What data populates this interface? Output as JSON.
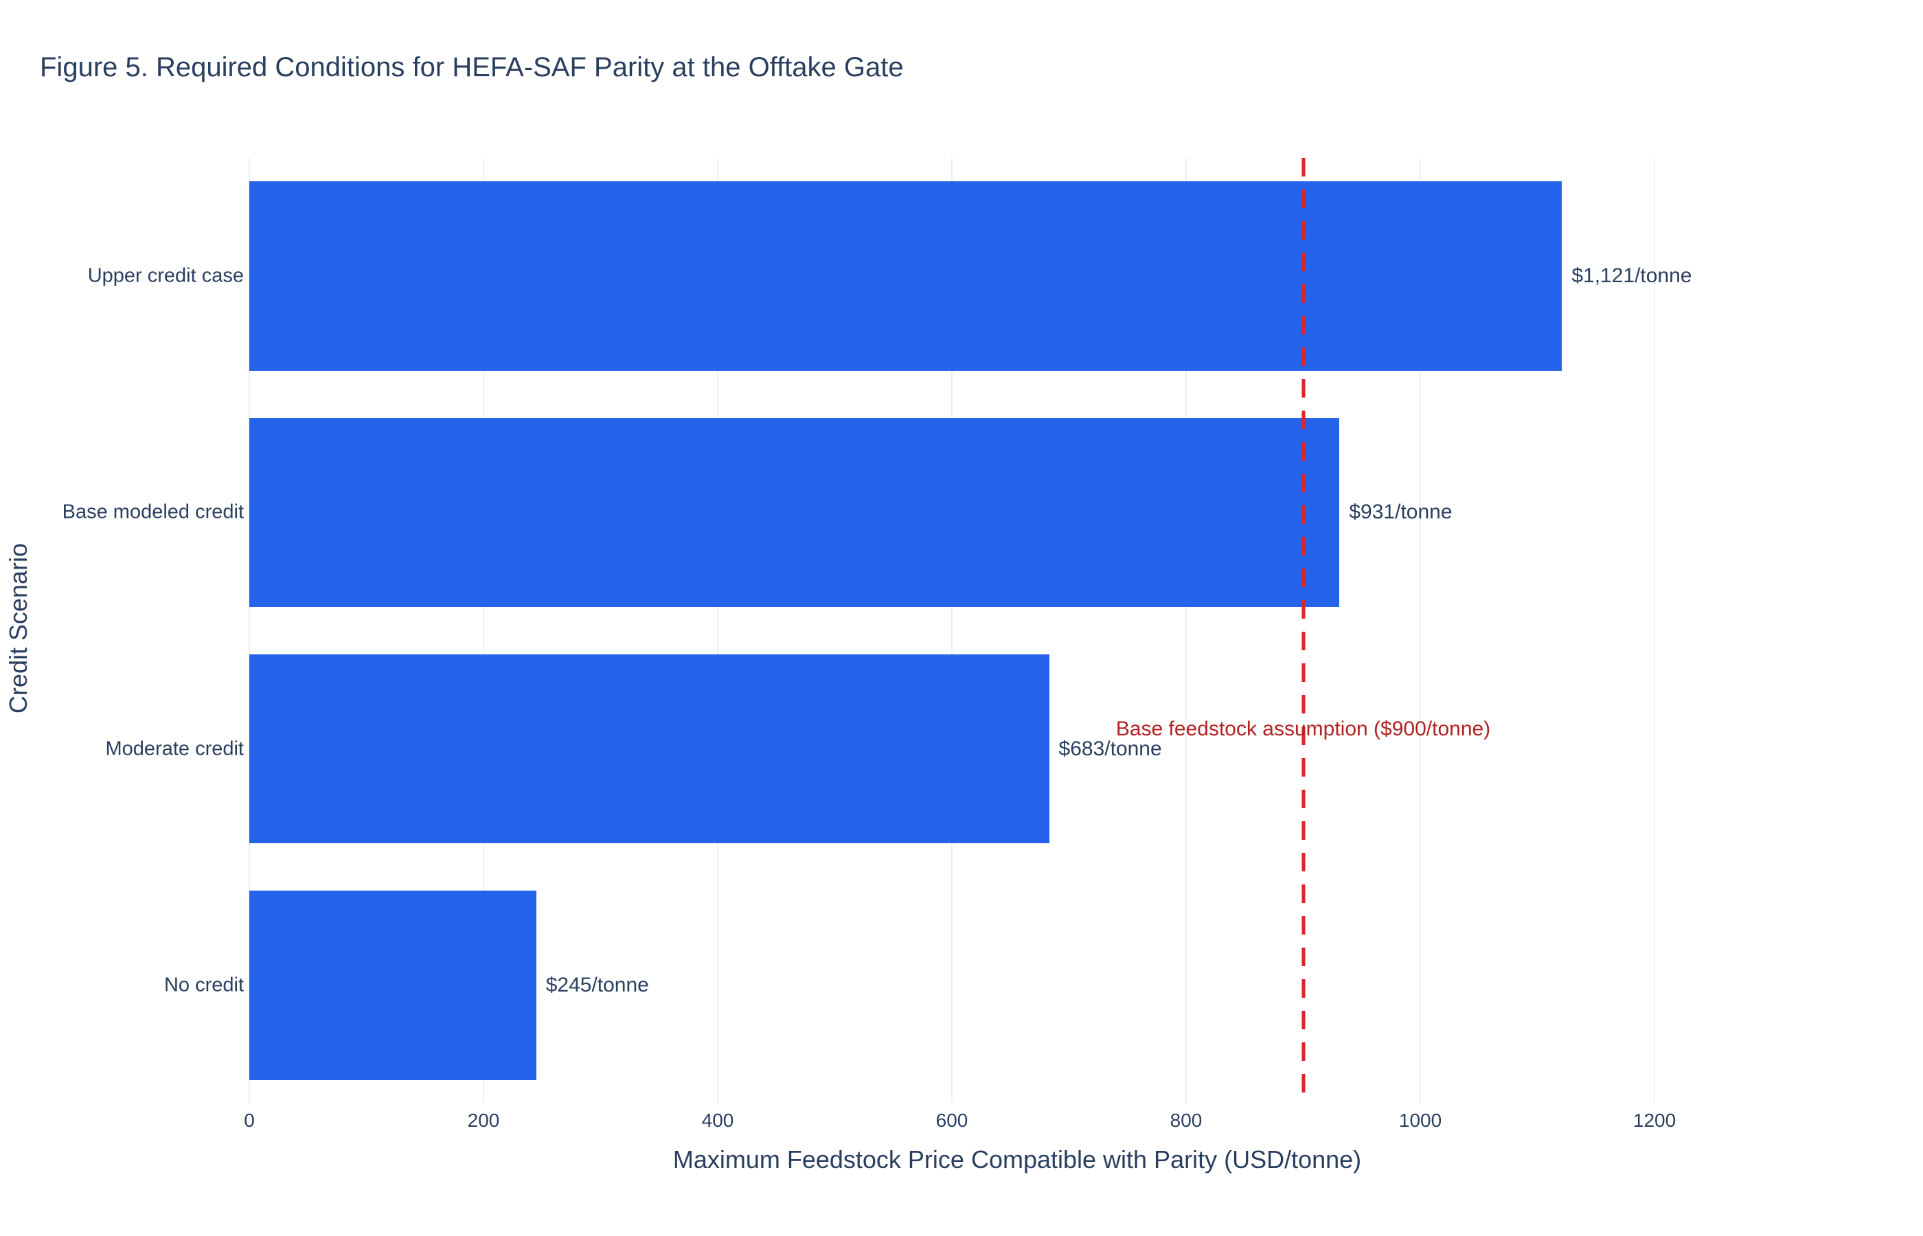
{
  "title": "Figure 5. Required Conditions for HEFA-SAF Parity at the Offtake Gate",
  "chart_data": {
    "type": "bar",
    "orientation": "horizontal",
    "title": "Figure 5. Required Conditions for HEFA-SAF Parity at the Offtake Gate",
    "categories": [
      "Upper credit case",
      "Base modeled credit",
      "Moderate credit",
      "No credit"
    ],
    "values": [
      1121,
      931,
      683,
      245
    ],
    "bar_labels": [
      "$1,121/tonne",
      "$931/tonne",
      "$683/tonne",
      "$245/tonne"
    ],
    "xlabel": "Maximum Feedstock Price Compatible with Parity (USD/tonne)",
    "ylabel": "Credit Scenario",
    "xticks": [
      0,
      200,
      400,
      600,
      800,
      1000,
      1200
    ],
    "xlim": [
      0,
      1312
    ],
    "grid": true,
    "legend": "none",
    "bar_color": "#2563eb",
    "reference_line": {
      "x": 900,
      "style": "dashed",
      "color": "#d8262b",
      "label": "Base feedstock assumption ($900/tonne)",
      "label_color": "#b22222"
    }
  },
  "colors": {
    "text": "#2a3f5f",
    "grid": "#ebf0f8",
    "background": "#ffffff",
    "bar": "#2563eb",
    "reference_line": "#d8262b",
    "annotation_text": "#b22222"
  }
}
